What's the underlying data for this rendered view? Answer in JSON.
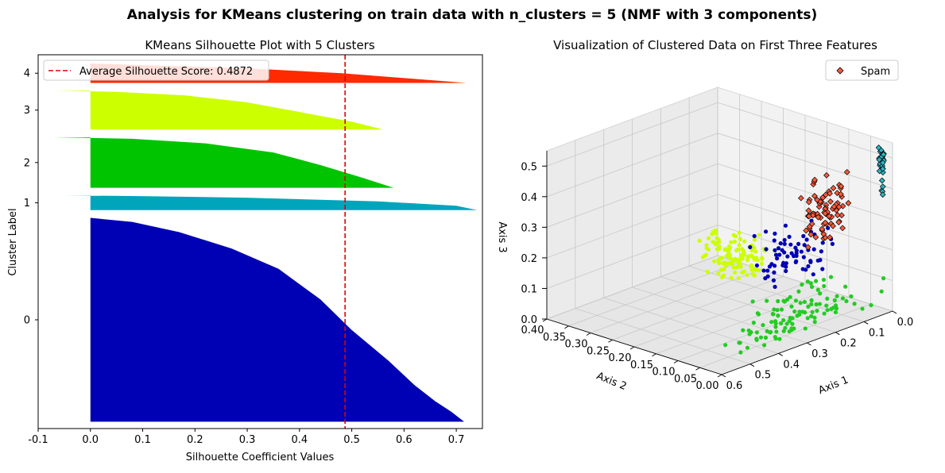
{
  "figure_title": "Analysis for KMeans clustering on train data with n_clusters = 5 (NMF with 3 components)",
  "chart_data": [
    {
      "type": "silhouette",
      "title": "KMeans Silhouette Plot with 5 Clusters",
      "xlabel": "Silhouette Coefficient Values",
      "ylabel": "Cluster Label",
      "xlim": [
        -0.1,
        0.75
      ],
      "xticks": [
        "-0.1",
        "0.0",
        "0.1",
        "0.2",
        "0.3",
        "0.4",
        "0.5",
        "0.6",
        "0.7"
      ],
      "average_score": 0.4872,
      "legend": "Average Silhouette Score: 0.4872",
      "legend_position": "upper-left",
      "clusters": [
        {
          "label": "0",
          "color": "#0000b4",
          "size": 2100,
          "profile": [
            [
              0,
              0.715
            ],
            [
              0.05,
              0.69
            ],
            [
              0.1,
              0.66
            ],
            [
              0.18,
              0.62
            ],
            [
              0.3,
              0.57
            ],
            [
              0.45,
              0.5
            ],
            [
              0.6,
              0.44
            ],
            [
              0.75,
              0.36
            ],
            [
              0.85,
              0.27
            ],
            [
              0.93,
              0.17
            ],
            [
              0.98,
              0.08
            ],
            [
              1,
              0.0
            ]
          ]
        },
        {
          "label": "1",
          "color": "#00a5bc",
          "size": 150,
          "profile": [
            [
              0,
              0.74
            ],
            [
              0.3,
              0.7
            ],
            [
              0.6,
              0.55
            ],
            [
              0.85,
              0.3
            ],
            [
              0.97,
              0.08
            ],
            [
              1,
              -0.05
            ]
          ]
        },
        {
          "label": "2",
          "color": "#00c400",
          "size": 520,
          "profile": [
            [
              0,
              0.58
            ],
            [
              0.2,
              0.52
            ],
            [
              0.45,
              0.44
            ],
            [
              0.7,
              0.35
            ],
            [
              0.88,
              0.22
            ],
            [
              0.97,
              0.08
            ],
            [
              1,
              -0.07
            ]
          ]
        },
        {
          "label": "3",
          "color": "#ccff00",
          "size": 400,
          "profile": [
            [
              0,
              0.56
            ],
            [
              0.2,
              0.5
            ],
            [
              0.45,
              0.4
            ],
            [
              0.7,
              0.3
            ],
            [
              0.88,
              0.18
            ],
            [
              0.97,
              0.05
            ],
            [
              1,
              -0.07
            ]
          ]
        },
        {
          "label": "4",
          "color": "#ff2a00",
          "size": 200,
          "profile": [
            [
              0,
              0.72
            ],
            [
              0.25,
              0.6
            ],
            [
              0.5,
              0.48
            ],
            [
              0.75,
              0.3
            ],
            [
              0.9,
              0.12
            ],
            [
              1,
              0.0
            ]
          ]
        }
      ],
      "avg_line_color": "#e00000"
    },
    {
      "type": "scatter3d",
      "title": "Visualization of Clustered Data on First Three Features",
      "xlabel": "Axis 1",
      "ylabel": "Axis 2",
      "zlabel": "Axis 3",
      "xlim": [
        0,
        0.6
      ],
      "ylim": [
        0,
        0.4
      ],
      "zlim": [
        0,
        0.55
      ],
      "xticks": [
        "0.0",
        "0.1",
        "0.2",
        "0.3",
        "0.4",
        "0.5",
        "0.6"
      ],
      "yticks": [
        "0.00",
        "0.05",
        "0.10",
        "0.15",
        "0.20",
        "0.25",
        "0.30",
        "0.35",
        "0.40"
      ],
      "zticks": [
        "0.0",
        "0.1",
        "0.2",
        "0.3",
        "0.4",
        "0.5"
      ],
      "legend": [
        {
          "name": "Spam",
          "color": "#ff5a3a",
          "marker": "diamond"
        }
      ],
      "legend_position": "upper-right",
      "clusters": [
        {
          "color": "#0000b4",
          "marker": "circle",
          "center": [
            0.1,
            0.12,
            0.16
          ],
          "spread": [
            0.05,
            0.05,
            0.04
          ],
          "count": 70
        },
        {
          "color": "#2ab5c4",
          "marker": "diamond",
          "center": [
            0.0,
            0.02,
            0.45
          ],
          "spread": [
            0.005,
            0.005,
            0.08
          ],
          "count": 30
        },
        {
          "color": "#22cc22",
          "marker": "circle",
          "center": [
            0.28,
            0.02,
            0.07
          ],
          "spread": [
            0.12,
            0.02,
            0.04
          ],
          "count": 110
        },
        {
          "color": "#ccff00",
          "marker": "circle",
          "center": [
            0.05,
            0.28,
            0.05
          ],
          "spread": [
            0.03,
            0.06,
            0.03
          ],
          "count": 120
        },
        {
          "color": "#ff5a3a",
          "marker": "diamond",
          "center": [
            0.05,
            0.1,
            0.3
          ],
          "spread": [
            0.03,
            0.03,
            0.05
          ],
          "count": 80
        }
      ]
    }
  ]
}
